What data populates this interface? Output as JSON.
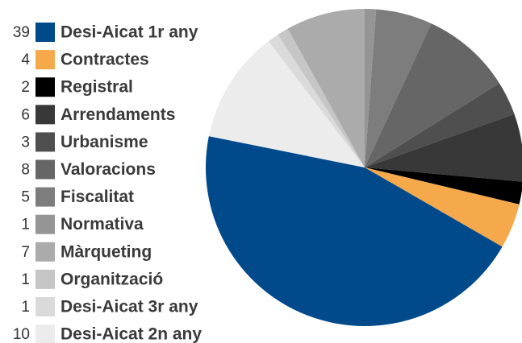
{
  "chart_data": {
    "type": "pie",
    "categories": [
      "Desi-Aicat 1r any",
      "Contractes",
      "Registral",
      "Arrendaments",
      "Urbanisme",
      "Valoracions",
      "Fiscalitat",
      "Normativa",
      "Màrqueting",
      "Organització",
      "Desi-Aicat 3r any",
      "Desi-Aicat 2n any"
    ],
    "values": [
      39,
      4,
      2,
      6,
      3,
      8,
      5,
      1,
      7,
      1,
      1,
      10
    ],
    "colors": [
      "#004a8c",
      "#f5a94a",
      "#000000",
      "#383838",
      "#4f4f4f",
      "#666666",
      "#7d7d7d",
      "#959595",
      "#ababab",
      "#c6c6c6",
      "#dadada",
      "#ececec"
    ]
  }
}
